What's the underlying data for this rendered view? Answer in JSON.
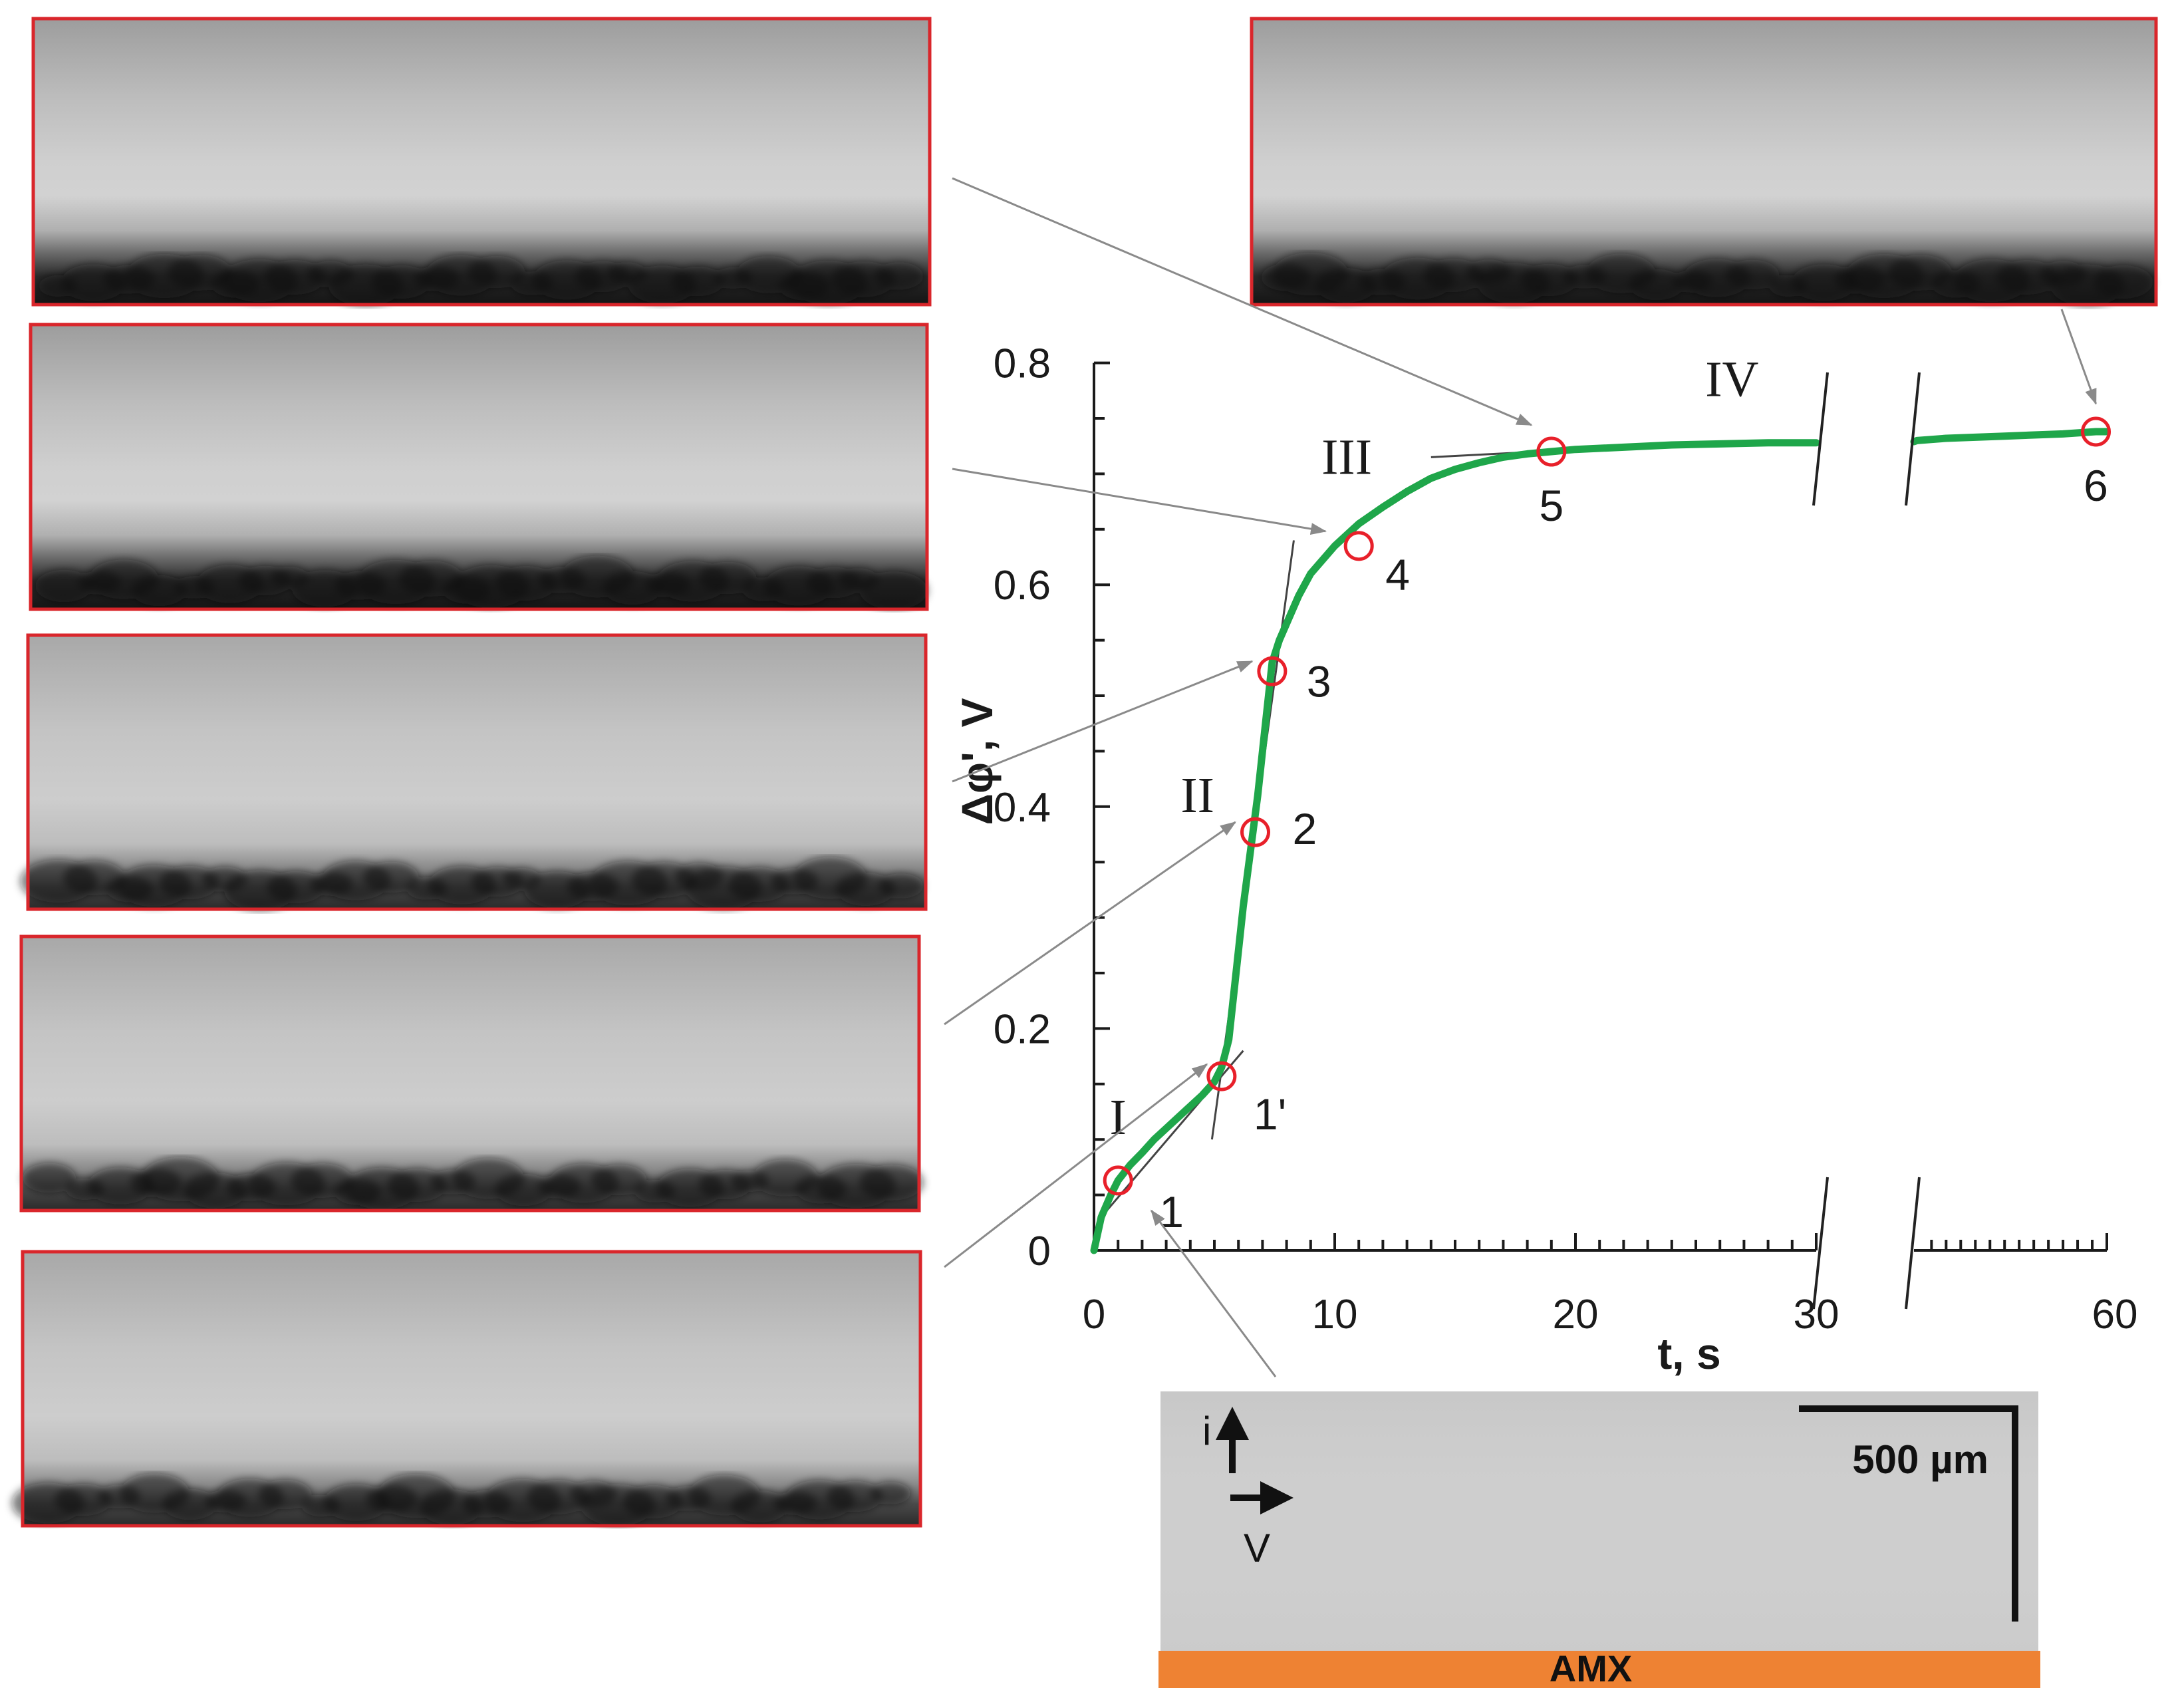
{
  "chart_data": {
    "type": "line",
    "ylabel": "Δφ', V",
    "xlabel": "t, s",
    "y_ticks": [
      "0",
      "0.2",
      "0.4",
      "0.6",
      "0.8"
    ],
    "x_ticks": [
      "0",
      "10",
      "20",
      "30",
      "60"
    ],
    "ylim": [
      0,
      0.8
    ],
    "x_axis_break": "30 to 60 s",
    "series_color": "#1fa64a",
    "series": [
      {
        "x": [
          0,
          0.3,
          0.7,
          1,
          1.5,
          2,
          2.5,
          3,
          3.5,
          4,
          4.5,
          5,
          5.3,
          5.6,
          5.9,
          6.2,
          6.5,
          6.8,
          7.1,
          7.4,
          7.7,
          8,
          8.5,
          9,
          10,
          11,
          12,
          13,
          14,
          15,
          16,
          17,
          18,
          19,
          20,
          22,
          24,
          26,
          28,
          30,
          34,
          38,
          42,
          46,
          50,
          54,
          58.5,
          60
        ],
        "y": [
          0,
          0.03,
          0.05,
          0.063,
          0.077,
          0.088,
          0.1,
          0.11,
          0.12,
          0.13,
          0.14,
          0.152,
          0.165,
          0.19,
          0.25,
          0.31,
          0.36,
          0.41,
          0.47,
          0.53,
          0.55,
          0.565,
          0.59,
          0.61,
          0.635,
          0.655,
          0.67,
          0.684,
          0.696,
          0.704,
          0.71,
          0.715,
          0.718,
          0.72,
          0.722,
          0.724,
          0.726,
          0.727,
          0.728,
          0.728,
          0.73,
          0.732,
          0.733,
          0.734,
          0.735,
          0.736,
          0.738,
          0.738
        ]
      }
    ],
    "marked_points": [
      {
        "label": "1",
        "x": 1,
        "y": 0.063
      },
      {
        "label": "1'",
        "x": 5.3,
        "y": 0.157
      },
      {
        "label": "2",
        "x": 6.7,
        "y": 0.377
      },
      {
        "label": "3",
        "x": 7.4,
        "y": 0.522
      },
      {
        "label": "4",
        "x": 11,
        "y": 0.635
      },
      {
        "label": "5",
        "x": 19,
        "y": 0.72
      },
      {
        "label": "6",
        "x": 58.5,
        "y": 0.738
      }
    ],
    "stages": [
      {
        "label": "I",
        "x": 1,
        "y": 0.105
      },
      {
        "label": "II",
        "x": 4.3,
        "y": 0.395
      },
      {
        "label": "III",
        "x": 10.5,
        "y": 0.7
      },
      {
        "label": "IV",
        "x": 26.5,
        "y": 0.77
      }
    ]
  },
  "inset": {
    "current_label": "i",
    "velocity_label": "V",
    "scale_label": "500 µm",
    "membrane_label": "AMX",
    "membrane_color": "#ee8233"
  },
  "colors": {
    "frame": "#d9262b",
    "circle": "#e8202a",
    "pointer": "#8a8a8a",
    "axis": "#1a1a1a"
  }
}
